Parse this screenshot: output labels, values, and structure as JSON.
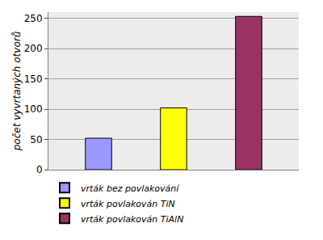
{
  "chart_data": {
    "type": "bar",
    "y_label": "počet vyvrtaných otvorů",
    "categories": [
      null
    ],
    "series": [
      {
        "name": "vrták bez povlakování",
        "color": "#9999ff",
        "values": [
          52
        ]
      },
      {
        "name": "vrták povlakován TiN",
        "color": "#ffff00",
        "values": [
          102
        ]
      },
      {
        "name": "vrták povlakován TiAlN",
        "color": "#993366",
        "values": [
          253
        ]
      }
    ],
    "ylim": [
      0,
      260
    ],
    "yticks": [
      0,
      50,
      100,
      150,
      200,
      250
    ],
    "grid": true,
    "legend": "bottom-left",
    "tick_labels": "y"
  }
}
